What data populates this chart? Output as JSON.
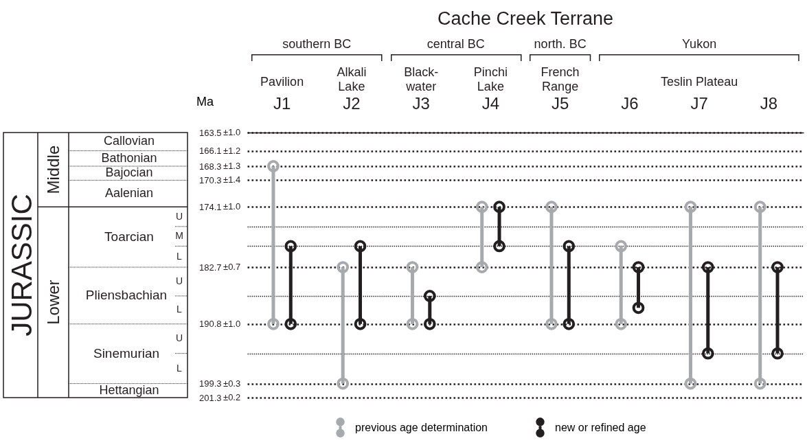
{
  "chart_data": {
    "type": "bar",
    "title": "Cache Creek Terrane",
    "ylabel": "Ma",
    "categories": [
      "J1",
      "J2",
      "J3",
      "J4",
      "J5",
      "J6",
      "J7",
      "J8"
    ],
    "series": [
      {
        "name": "previous age determination",
        "color": "#a7a9ac",
        "base": [
          168.3,
          182.7,
          182.7,
          174.1,
          174.1,
          179.7,
          174.1,
          174.1
        ],
        "values": [
          22.5,
          16.6,
          8.1,
          8.6,
          16.7,
          11.1,
          25.2,
          25.2
        ]
      },
      {
        "name": "new or refined age",
        "color": "#231f20",
        "base": [
          179.7,
          179.7,
          186.8,
          174.1,
          179.7,
          182.7,
          182.7,
          182.7
        ],
        "values": [
          11.1,
          11.1,
          4.0,
          5.6,
          11.1,
          5.8,
          12.3,
          12.3
        ]
      },
      {
        "type": "scatter",
        "color": "#a7a9ac",
        "x": [
          "J1",
          "J1",
          "J2",
          "J2",
          "J3",
          "J3",
          "J4",
          "J4",
          "J5",
          "J5",
          "J6",
          "J6",
          "J7",
          "J7",
          "J8",
          "J8"
        ],
        "values": [
          168.3,
          190.8,
          182.7,
          199.3,
          182.7,
          190.8,
          174.1,
          182.7,
          174.1,
          190.8,
          179.7,
          190.8,
          174.1,
          199.3,
          174.1,
          199.3
        ]
      },
      {
        "type": "scatter",
        "color": "#231f20",
        "x": [
          "J1",
          "J1",
          "J2",
          "J2",
          "J3",
          "J3",
          "J4",
          "J4",
          "J5",
          "J5",
          "J6",
          "J6",
          "J7",
          "J7",
          "J8",
          "J8"
        ],
        "values": [
          179.7,
          190.8,
          179.7,
          190.8,
          186.8,
          190.8,
          174.1,
          179.7,
          179.7,
          190.8,
          182.7,
          188.5,
          182.7,
          195.0,
          182.7,
          195.0
        ]
      }
    ],
    "ylim": [
      201.3,
      163.5
    ],
    "yticks": [
      163.5,
      166.1,
      168.3,
      170.3,
      174.1,
      {
        "value": 176.9,
        "label": null
      },
      {
        "value": 179.7,
        "label": null
      },
      182.7,
      {
        "value": 186.8,
        "label": null
      },
      190.8,
      {
        "value": 195.0,
        "label": null
      },
      199.3,
      201.3
    ],
    "grid": "y",
    "legend": "bottom",
    "annotations": [
      "southern BC",
      "central BC",
      "north. BC",
      "Yukon",
      "Pavilion",
      "Alkali\nLake",
      "Black-\nwater",
      "Pinchi\nLake",
      "French\nRange",
      "Teslin Plateau",
      "JURASSIC",
      "Middle",
      "Lower",
      "Callovian",
      "Bathonian",
      "Bajocian",
      "Aalenian",
      "Toarcian",
      "Pliensbachian",
      "Sinemurian",
      "Hettangian",
      "U",
      "M",
      "L",
      "U",
      "L",
      "U",
      "L",
      "±1.0",
      "±1.2",
      "±1.3",
      "±1.4",
      "±1.0",
      "±0.7",
      "±1.0",
      "±0.3",
      "±0.2"
    ],
    "marker": "circle"
  }
}
